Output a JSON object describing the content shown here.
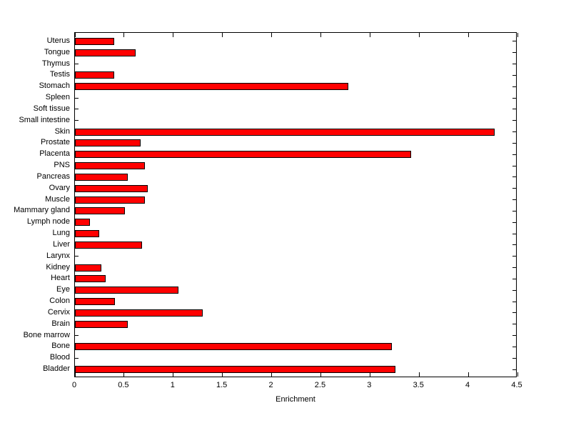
{
  "chart_data": {
    "type": "bar",
    "orientation": "horizontal",
    "title": "",
    "xlabel": "Enrichment",
    "ylabel": "",
    "xlim": [
      0,
      4.5
    ],
    "xticks": [
      0,
      0.5,
      1,
      1.5,
      2,
      2.5,
      3,
      3.5,
      4,
      4.5
    ],
    "xtick_labels": [
      "0",
      "0.5",
      "1",
      "1.5",
      "2",
      "2.5",
      "3",
      "3.5",
      "4",
      "4.5"
    ],
    "grid": false,
    "legend": "none",
    "bar_color": "#ff0000",
    "bar_edge_color": "#000000",
    "categories": [
      "Uterus",
      "Tongue",
      "Thymus",
      "Testis",
      "Stomach",
      "Spleen",
      "Soft tissue",
      "Small intestine",
      "Skin",
      "Prostate",
      "Placenta",
      "PNS",
      "Pancreas",
      "Ovary",
      "Muscle",
      "Mammary gland",
      "Lymph node",
      "Lung",
      "Liver",
      "Larynx",
      "Kidney",
      "Heart",
      "Eye",
      "Colon",
      "Cervix",
      "Brain",
      "Bone marrow",
      "Bone",
      "Blood",
      "Bladder"
    ],
    "values": [
      0.4,
      0.62,
      0,
      0.4,
      2.78,
      0,
      0,
      0,
      4.27,
      0.67,
      3.42,
      0.71,
      0.54,
      0.74,
      0.71,
      0.51,
      0.15,
      0.25,
      0.68,
      0,
      0.27,
      0.31,
      1.05,
      0.41,
      1.3,
      0.54,
      0,
      3.22,
      0,
      3.26
    ]
  }
}
